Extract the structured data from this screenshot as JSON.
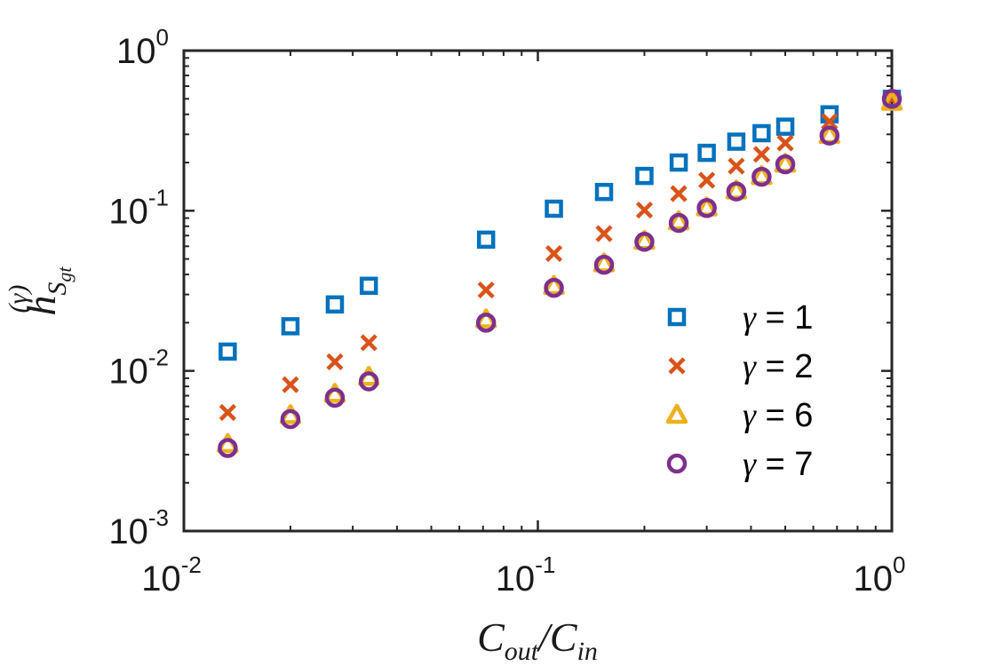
{
  "chart_data": {
    "type": "scatter",
    "title": "",
    "xlabel": "C_out/C_in",
    "ylabel": "h_{S_gt}^{(γ)}",
    "xscale": "log",
    "yscale": "log",
    "xlim": [
      0.01,
      1
    ],
    "ylim": [
      0.001,
      1
    ],
    "x_ticks": [
      {
        "base": "10",
        "exp": "-2"
      },
      {
        "base": "10",
        "exp": "-1"
      },
      {
        "base": "10",
        "exp": "0"
      }
    ],
    "y_ticks": [
      {
        "base": "10",
        "exp": "-3"
      },
      {
        "base": "10",
        "exp": "-2"
      },
      {
        "base": "10",
        "exp": "-1"
      },
      {
        "base": "10",
        "exp": "0"
      }
    ],
    "x": [
      0.0133,
      0.02,
      0.0267,
      0.0333,
      0.0714,
      0.111,
      0.1538,
      0.2,
      0.25,
      0.3,
      0.3636,
      0.4286,
      0.5,
      0.6667,
      1.0
    ],
    "series": [
      {
        "name": "γ = 1",
        "marker": "square",
        "color": "#0072BD",
        "values": [
          0.0132,
          0.019,
          0.026,
          0.034,
          0.066,
          0.103,
          0.131,
          0.165,
          0.2,
          0.23,
          0.27,
          0.305,
          0.335,
          0.4,
          0.5
        ]
      },
      {
        "name": "γ = 2",
        "marker": "x",
        "color": "#D95319",
        "values": [
          0.0055,
          0.0082,
          0.0114,
          0.015,
          0.032,
          0.054,
          0.072,
          0.101,
          0.128,
          0.155,
          0.19,
          0.225,
          0.265,
          0.36,
          0.5
        ]
      },
      {
        "name": "γ = 6",
        "marker": "triangle",
        "color": "#EDB120",
        "values": [
          0.0035,
          0.0053,
          0.0072,
          0.0092,
          0.021,
          0.034,
          0.047,
          0.065,
          0.086,
          0.105,
          0.134,
          0.165,
          0.197,
          0.298,
          0.48
        ]
      },
      {
        "name": "γ = 7",
        "marker": "circle",
        "color": "#7E2F8E",
        "values": [
          0.0033,
          0.005,
          0.0068,
          0.0086,
          0.02,
          0.033,
          0.046,
          0.064,
          0.084,
          0.104,
          0.132,
          0.163,
          0.195,
          0.295,
          0.5
        ]
      }
    ],
    "legend": {
      "position": "lower-right",
      "entries": [
        {
          "sym": "γ",
          "rest": " = 1"
        },
        {
          "sym": "γ",
          "rest": " = 2"
        },
        {
          "sym": "γ",
          "rest": " = 6"
        },
        {
          "sym": "γ",
          "rest": " = 7"
        }
      ]
    },
    "grid": false
  }
}
